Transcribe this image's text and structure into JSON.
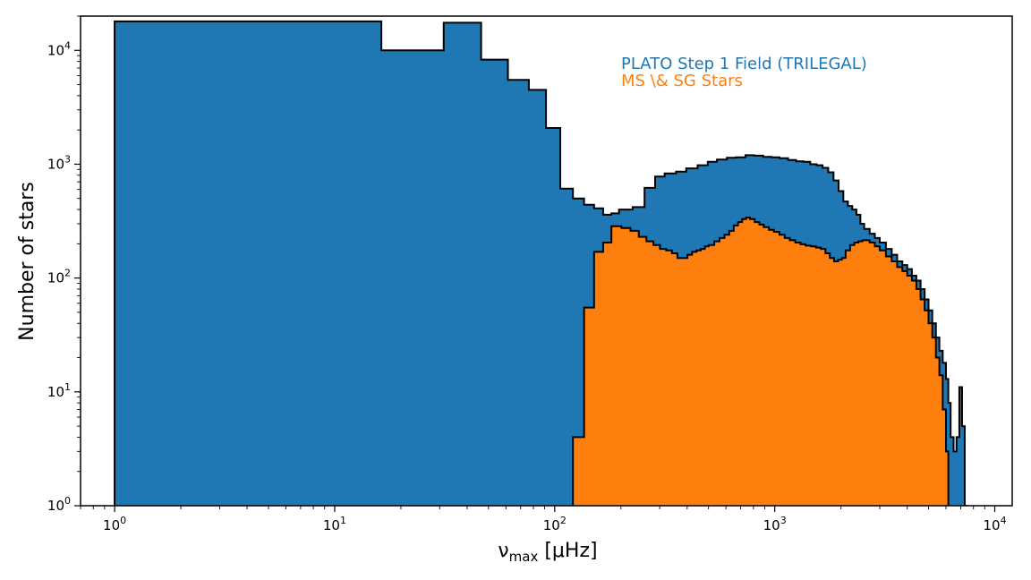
{
  "chart_data": {
    "type": "histogram",
    "xlabel_main": "ν",
    "xlabel_sub": "max",
    "xlabel_units": " [μHz]",
    "ylabel": "Number of stars",
    "x_scale": "log",
    "y_scale": "log",
    "xlim": [
      0.7,
      12000
    ],
    "ylim": [
      1,
      20000
    ],
    "x_ticks": [
      {
        "value": 1,
        "base": "10",
        "exp": "0"
      },
      {
        "value": 10,
        "base": "10",
        "exp": "1"
      },
      {
        "value": 100,
        "base": "10",
        "exp": "2"
      },
      {
        "value": 1000,
        "base": "10",
        "exp": "3"
      },
      {
        "value": 10000,
        "base": "10",
        "exp": "4"
      }
    ],
    "y_ticks": [
      {
        "value": 1,
        "base": "10",
        "exp": "0"
      },
      {
        "value": 10,
        "base": "10",
        "exp": "1"
      },
      {
        "value": 100,
        "base": "10",
        "exp": "2"
      },
      {
        "value": 1000,
        "base": "10",
        "exp": "3"
      },
      {
        "value": 10000,
        "base": "10",
        "exp": "4"
      }
    ],
    "grid": false,
    "legend_position": "top-right",
    "series": [
      {
        "name": "PLATO Step 1 Field (TRILEGAL)",
        "color": "#1f77b4",
        "points": [
          [
            1,
            18000
          ],
          [
            16.3,
            10000
          ],
          [
            31.3,
            17500
          ],
          [
            46.3,
            8300
          ],
          [
            61.3,
            5500
          ],
          [
            76.3,
            4500
          ],
          [
            91.3,
            2080
          ],
          [
            106,
            610
          ],
          [
            121,
            500
          ],
          [
            136,
            440
          ],
          [
            151,
            410
          ],
          [
            166,
            360
          ],
          [
            181,
            370
          ],
          [
            196,
            400
          ],
          [
            226,
            420
          ],
          [
            256,
            620
          ],
          [
            286,
            780
          ],
          [
            316,
            830
          ],
          [
            356,
            860
          ],
          [
            396,
            920
          ],
          [
            446,
            980
          ],
          [
            496,
            1050
          ],
          [
            546,
            1100
          ],
          [
            606,
            1140
          ],
          [
            666,
            1150
          ],
          [
            736,
            1200
          ],
          [
            806,
            1190
          ],
          [
            886,
            1160
          ],
          [
            966,
            1150
          ],
          [
            1050,
            1130
          ],
          [
            1150,
            1090
          ],
          [
            1250,
            1060
          ],
          [
            1350,
            1050
          ],
          [
            1450,
            1000
          ],
          [
            1550,
            980
          ],
          [
            1650,
            930
          ],
          [
            1750,
            850
          ],
          [
            1850,
            720
          ],
          [
            1950,
            580
          ],
          [
            2050,
            470
          ],
          [
            2150,
            430
          ],
          [
            2250,
            400
          ],
          [
            2350,
            360
          ],
          [
            2450,
            300
          ],
          [
            2550,
            270
          ],
          [
            2700,
            245
          ],
          [
            2850,
            225
          ],
          [
            3000,
            205
          ],
          [
            3200,
            180
          ],
          [
            3400,
            160
          ],
          [
            3600,
            140
          ],
          [
            3800,
            130
          ],
          [
            4000,
            120
          ],
          [
            4200,
            105
          ],
          [
            4400,
            95
          ],
          [
            4600,
            80
          ],
          [
            4800,
            65
          ],
          [
            5000,
            52
          ],
          [
            5200,
            40
          ],
          [
            5400,
            30
          ],
          [
            5600,
            23
          ],
          [
            5800,
            18
          ],
          [
            6000,
            13
          ],
          [
            6150,
            8
          ],
          [
            6300,
            4
          ],
          [
            6500,
            3
          ],
          [
            6700,
            4
          ],
          [
            6900,
            11
          ],
          [
            7100,
            5
          ],
          [
            7300,
            1
          ]
        ],
        "x_end": 7500
      },
      {
        "name": "MS \\& SG Stars",
        "color": "#ff7f0e",
        "points": [
          [
            121,
            4
          ],
          [
            136,
            55
          ],
          [
            151,
            170
          ],
          [
            166,
            205
          ],
          [
            181,
            285
          ],
          [
            201,
            275
          ],
          [
            221,
            260
          ],
          [
            241,
            230
          ],
          [
            261,
            210
          ],
          [
            281,
            195
          ],
          [
            301,
            180
          ],
          [
            321,
            175
          ],
          [
            341,
            165
          ],
          [
            361,
            150
          ],
          [
            381,
            150
          ],
          [
            401,
            160
          ],
          [
            421,
            170
          ],
          [
            441,
            175
          ],
          [
            461,
            180
          ],
          [
            481,
            190
          ],
          [
            501,
            195
          ],
          [
            531,
            210
          ],
          [
            561,
            225
          ],
          [
            591,
            240
          ],
          [
            621,
            260
          ],
          [
            651,
            290
          ],
          [
            681,
            310
          ],
          [
            711,
            330
          ],
          [
            741,
            340
          ],
          [
            771,
            330
          ],
          [
            811,
            310
          ],
          [
            851,
            295
          ],
          [
            891,
            280
          ],
          [
            941,
            265
          ],
          [
            991,
            255
          ],
          [
            1050,
            240
          ],
          [
            1110,
            225
          ],
          [
            1170,
            215
          ],
          [
            1240,
            205
          ],
          [
            1310,
            198
          ],
          [
            1380,
            193
          ],
          [
            1460,
            190
          ],
          [
            1540,
            185
          ],
          [
            1620,
            180
          ],
          [
            1700,
            165
          ],
          [
            1780,
            150
          ],
          [
            1860,
            140
          ],
          [
            1940,
            145
          ],
          [
            2020,
            150
          ],
          [
            2100,
            175
          ],
          [
            2200,
            195
          ],
          [
            2300,
            205
          ],
          [
            2400,
            210
          ],
          [
            2500,
            215
          ],
          [
            2600,
            215
          ],
          [
            2700,
            205
          ],
          [
            2850,
            190
          ],
          [
            3000,
            175
          ],
          [
            3200,
            155
          ],
          [
            3400,
            140
          ],
          [
            3600,
            125
          ],
          [
            3800,
            115
          ],
          [
            4000,
            105
          ],
          [
            4200,
            95
          ],
          [
            4400,
            80
          ],
          [
            4600,
            65
          ],
          [
            4800,
            52
          ],
          [
            5000,
            40
          ],
          [
            5200,
            30
          ],
          [
            5400,
            20
          ],
          [
            5600,
            14
          ],
          [
            5800,
            7
          ],
          [
            6000,
            3
          ]
        ],
        "x_end": 6150
      }
    ]
  }
}
